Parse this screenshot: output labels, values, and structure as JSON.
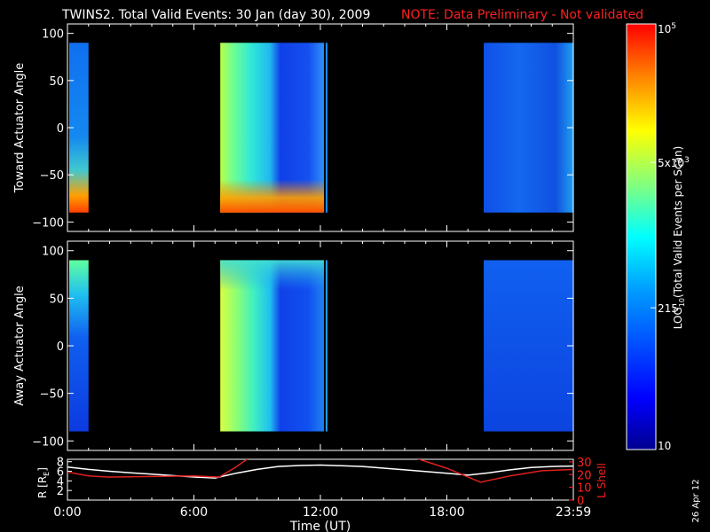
{
  "title": {
    "main": "TWINS2. Total Valid Events: 30 Jan (day  30), 2009",
    "note": "NOTE: Data Preliminary - Not validated"
  },
  "colors": {
    "background": "#000000",
    "axes": "#ffffff",
    "note": "#ff2020",
    "r_line": "#ffffff",
    "lshell_line": "#e02020"
  },
  "chart_data": [
    {
      "type": "heatmap",
      "name": "toward",
      "ylabel": "Toward Actuator Angle",
      "ylim": [
        -110,
        110
      ],
      "yticks": [
        100,
        50,
        0,
        -50,
        -100
      ],
      "xlim_hours": [
        0,
        24
      ],
      "angle_range": [
        -90,
        90
      ],
      "data_blocks": [
        {
          "start": "00:05",
          "end": "01:00"
        },
        {
          "start": "07:15",
          "end": "12:10"
        },
        {
          "start": "12:15",
          "end": "12:20"
        },
        {
          "start": "19:45",
          "end": "24:00"
        }
      ]
    },
    {
      "type": "heatmap",
      "name": "away",
      "ylabel": "Away Actuator Angle",
      "ylim": [
        -110,
        110
      ],
      "yticks": [
        100,
        50,
        0,
        -50,
        -100
      ],
      "xlim_hours": [
        0,
        24
      ],
      "angle_range": [
        -90,
        90
      ],
      "data_blocks": [
        {
          "start": "00:05",
          "end": "01:00"
        },
        {
          "start": "07:15",
          "end": "12:10"
        },
        {
          "start": "12:15",
          "end": "12:20"
        },
        {
          "start": "19:45",
          "end": "24:00"
        }
      ]
    },
    {
      "type": "line",
      "name": "orbit",
      "xlabel": "Time (UT)",
      "xticks": [
        "0:00",
        "6:00",
        "12:00",
        "18:00",
        "23:59"
      ],
      "xtick_hours": [
        0,
        6,
        12,
        18,
        24
      ],
      "left_axis": {
        "label_prefix": "R [R",
        "label_sub": "E",
        "label_suffix": "]",
        "ticks": [
          2,
          4,
          6,
          8
        ],
        "ylim": [
          0,
          8.5
        ]
      },
      "right_axis": {
        "label": "L Shell",
        "ticks": [
          0,
          10,
          20,
          30
        ],
        "ylim": [
          0,
          32
        ]
      },
      "series": [
        {
          "axis": "left",
          "x": [
            0,
            1,
            2,
            3,
            4,
            5,
            6,
            7,
            8,
            9,
            10,
            11,
            12,
            14,
            16,
            18,
            19,
            20,
            21,
            22,
            23,
            24
          ],
          "y": [
            6.9,
            6.4,
            6.0,
            5.7,
            5.4,
            5.1,
            4.8,
            4.6,
            5.6,
            6.4,
            7.0,
            7.2,
            7.3,
            7.0,
            6.3,
            5.6,
            5.2,
            5.7,
            6.3,
            6.8,
            7.0,
            7.1
          ]
        },
        {
          "axis": "right",
          "x": [
            0,
            1,
            2,
            4,
            6,
            7.2,
            8,
            8.6,
            16.5,
            18,
            19.6,
            21,
            22.5,
            24
          ],
          "y": [
            22,
            19,
            18,
            18.5,
            19,
            18,
            26,
            33,
            33,
            25,
            14,
            19,
            23,
            24
          ]
        }
      ]
    }
  ],
  "colorbar": {
    "label_prefix": "LOG",
    "label_sub": "10",
    "label_suffix": "(Total Valid Events per Scan)",
    "ticks": [
      {
        "value": 10,
        "label": "10"
      },
      {
        "value": 215,
        "label": "215"
      },
      {
        "value": 5000,
        "mant": "5x10",
        "exp": "3"
      },
      {
        "value": 100000,
        "mant": "10",
        "exp": "5"
      }
    ],
    "range": [
      10,
      100000
    ]
  },
  "footer_date": "26 Apr 12"
}
